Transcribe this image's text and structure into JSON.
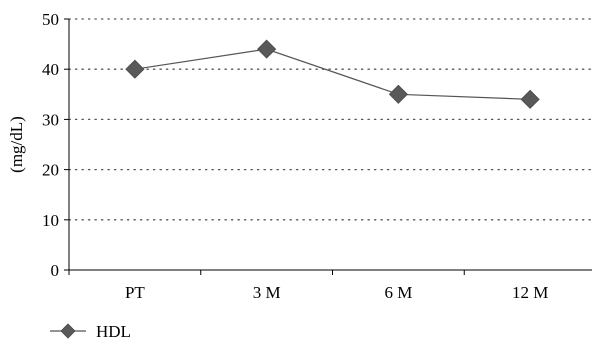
{
  "chart_data": {
    "type": "line",
    "categories": [
      "PT",
      "3 M",
      "6 M",
      "12 M"
    ],
    "series": [
      {
        "name": "HDL",
        "values": [
          40,
          44,
          35,
          34
        ]
      }
    ],
    "ylabel": "(mg/dL)",
    "ylim": [
      0,
      50
    ],
    "yticks": [
      0,
      10,
      20,
      30,
      40,
      50
    ],
    "grid": "horizontal-dotted",
    "legend": "bottom-left",
    "colors": {
      "line": "#555555",
      "marker": "#595959",
      "grid": "#555555",
      "axis": "#000000"
    }
  }
}
